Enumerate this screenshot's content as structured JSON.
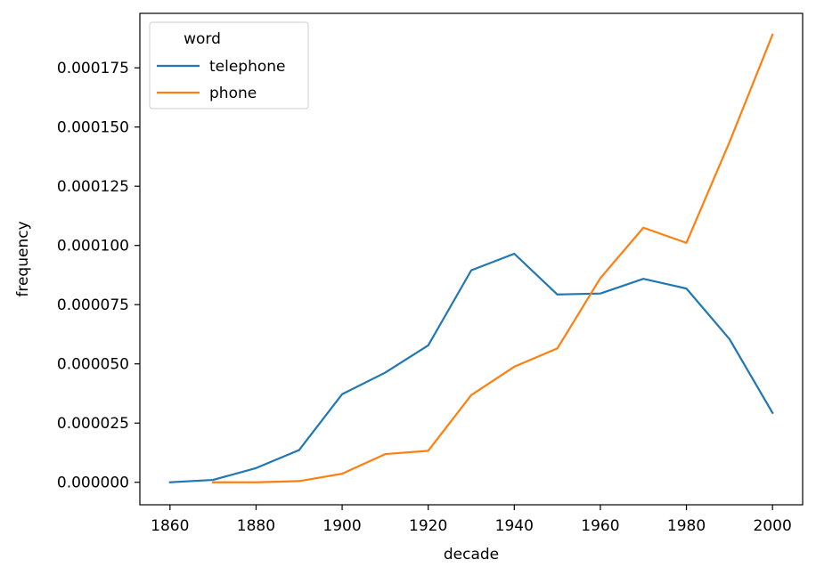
{
  "chart_data": {
    "type": "line",
    "title": "",
    "xlabel": "decade",
    "ylabel": "frequency",
    "xlim": [
      1853,
      2007
    ],
    "ylim": [
      -9.5e-06,
      0.000198
    ],
    "xticks": [
      1860,
      1880,
      1900,
      1920,
      1940,
      1960,
      1980,
      2000
    ],
    "yticks": [
      0,
      2.5e-05,
      5e-05,
      7.5e-05,
      0.0001,
      0.000125,
      0.00015,
      0.000175
    ],
    "ytick_labels": [
      "0.000000",
      "0.000025",
      "0.000050",
      "0.000075",
      "0.000100",
      "0.000125",
      "0.000150",
      "0.000175"
    ],
    "grid": false,
    "legend": {
      "title": "word",
      "position": "top-left"
    },
    "series": [
      {
        "name": "telephone",
        "color": "#1f77b4",
        "x": [
          1860,
          1870,
          1880,
          1890,
          1900,
          1910,
          1920,
          1930,
          1940,
          1950,
          1960,
          1970,
          1980,
          1990,
          2000
        ],
        "y": [
          0.0,
          1e-06,
          6e-06,
          1.36e-05,
          3.72e-05,
          4.63e-05,
          5.78e-05,
          8.95e-05,
          9.65e-05,
          7.93e-05,
          7.97e-05,
          8.59e-05,
          8.18e-05,
          6.05e-05,
          2.93e-05
        ]
      },
      {
        "name": "phone",
        "color": "#ff7f0e",
        "x": [
          1870,
          1880,
          1890,
          1900,
          1910,
          1920,
          1930,
          1940,
          1950,
          1960,
          1970,
          1980,
          1990,
          2000
        ],
        "y": [
          0.0,
          0.0,
          5e-07,
          3.6e-06,
          1.19e-05,
          1.33e-05,
          3.68e-05,
          4.88e-05,
          5.65e-05,
          8.62e-05,
          0.0001075,
          0.0001011,
          0.0001436,
          0.000189
        ]
      }
    ]
  }
}
